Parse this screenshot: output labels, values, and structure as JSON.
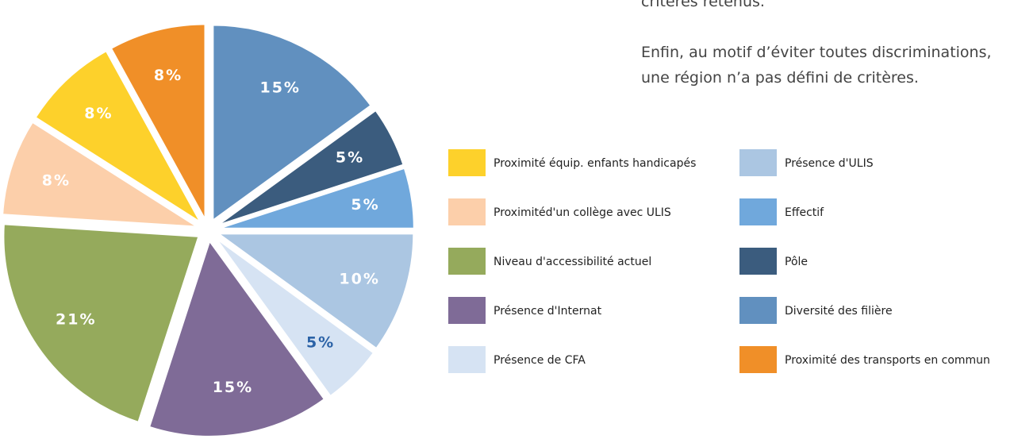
{
  "text": {
    "line0": "critères retenus.",
    "line1": "Enfin, au motif d’éviter toutes discriminations,",
    "line2": "une région n’a pas défini de critères."
  },
  "chart_data": {
    "type": "pie",
    "categories": [
      "Diversité des filière",
      "Pôle",
      "Effectif",
      "Présence d'ULIS",
      "Présence de CFA",
      "Présence d'Internat",
      "Niveau d'accessibilité actuel",
      "Proximitéd'un collège avec ULIS",
      "Proximité équip. enfants handicapés",
      "Proximité des transports en commun"
    ],
    "values": [
      15,
      5,
      5,
      10,
      5,
      15,
      21,
      8,
      8,
      8
    ],
    "value_labels": [
      "15%",
      "5%",
      "5%",
      "10%",
      "5%",
      "15%",
      "21%",
      "8%",
      "8%",
      "8%"
    ],
    "colors": [
      "#6190bf",
      "#3b5c7e",
      "#70a8dc",
      "#abc6e2",
      "#d6e3f3",
      "#7f6b97",
      "#95aa5c",
      "#fccfaa",
      "#fdd12b",
      "#f08f28"
    ],
    "value_label_colors": [
      "#ffffff",
      "#ffffff",
      "#ffffff",
      "#ffffff",
      "#2b62a6",
      "#ffffff",
      "#ffffff",
      "#ffffff",
      "#ffffff",
      "#ffffff"
    ]
  }
}
